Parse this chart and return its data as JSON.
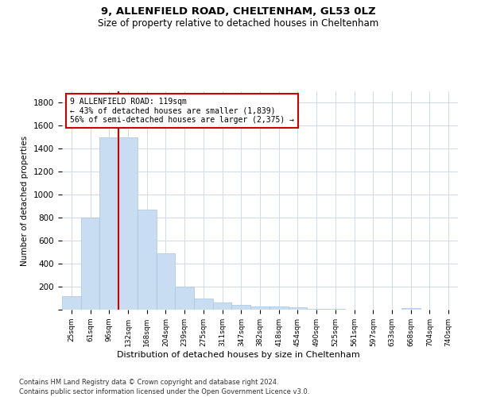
{
  "title1": "9, ALLENFIELD ROAD, CHELTENHAM, GL53 0LZ",
  "title2": "Size of property relative to detached houses in Cheltenham",
  "xlabel": "Distribution of detached houses by size in Cheltenham",
  "ylabel": "Number of detached properties",
  "categories": [
    "25sqm",
    "61sqm",
    "96sqm",
    "132sqm",
    "168sqm",
    "204sqm",
    "239sqm",
    "275sqm",
    "311sqm",
    "347sqm",
    "382sqm",
    "418sqm",
    "454sqm",
    "490sqm",
    "525sqm",
    "561sqm",
    "597sqm",
    "633sqm",
    "668sqm",
    "704sqm",
    "740sqm"
  ],
  "values": [
    120,
    800,
    1500,
    1500,
    870,
    490,
    200,
    100,
    65,
    42,
    28,
    25,
    20,
    10,
    5,
    3,
    2,
    2,
    15,
    2,
    2
  ],
  "bar_color": "#c9ddf2",
  "bar_edge_color": "#a8c4e0",
  "vline_color": "#cc0000",
  "annotation_text": "9 ALLENFIELD ROAD: 119sqm\n← 43% of detached houses are smaller (1,839)\n56% of semi-detached houses are larger (2,375) →",
  "annotation_box_color": "#ffffff",
  "annotation_border_color": "#cc0000",
  "ylim": [
    0,
    1900
  ],
  "yticks": [
    0,
    200,
    400,
    600,
    800,
    1000,
    1200,
    1400,
    1600,
    1800
  ],
  "footnote1": "Contains HM Land Registry data © Crown copyright and database right 2024.",
  "footnote2": "Contains public sector information licensed under the Open Government Licence v3.0.",
  "bg_color": "#ffffff",
  "grid_color": "#d0daea"
}
